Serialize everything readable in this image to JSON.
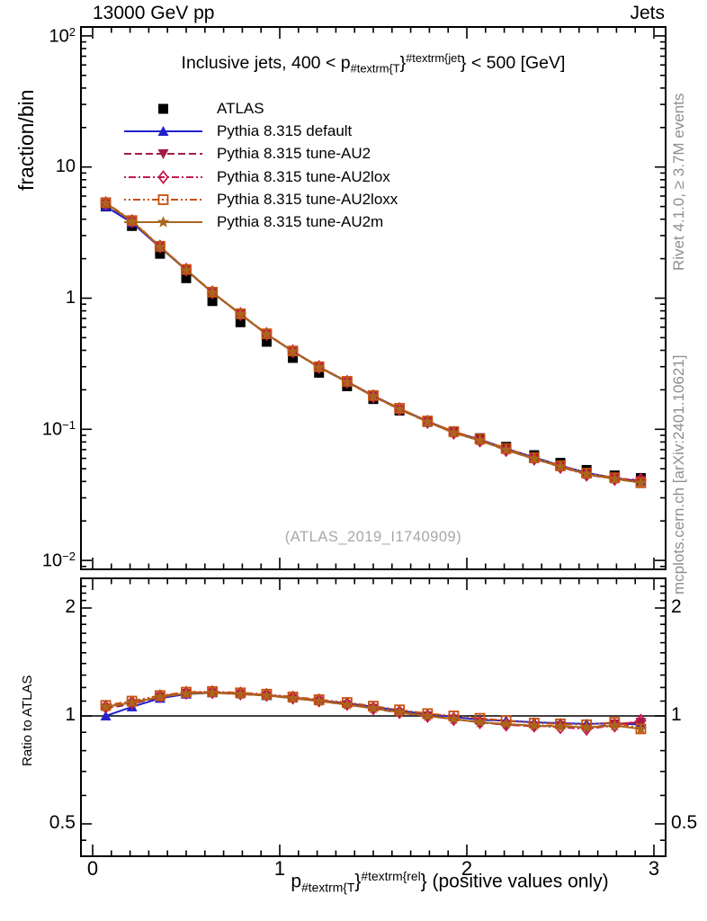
{
  "chart_data": {
    "type": "line",
    "beam_label": "13000 GeV pp",
    "process_label": "Jets",
    "title_parts": [
      {
        "t": "base",
        "s": "Inclusive jets, 400 < p"
      },
      {
        "t": "sub",
        "s": "#textrm{T"
      },
      {
        "t": "base",
        "s": "}"
      },
      {
        "t": "sup",
        "s": "#textrm{jet"
      },
      {
        "t": "base",
        "s": "} < 500 [GeV]"
      }
    ],
    "xlabel_parts": [
      {
        "t": "base",
        "s": "p"
      },
      {
        "t": "sub",
        "s": "#textrm{T"
      },
      {
        "t": "base",
        "s": "}"
      },
      {
        "t": "sup",
        "s": "#textrm{rel"
      },
      {
        "t": "base",
        "s": "} (positive values only)"
      }
    ],
    "ylabel": "fraction/bin",
    "ratio_ylabel": "Ratio to ATLAS",
    "watermark": "(ATLAS_2019_I1740909)",
    "side_notes": {
      "top": "Rivet 4.1.0, ≥ 3.7M events",
      "bottom": "mcplots.cern.ch [arXiv:2401.10621]"
    },
    "x_axis": {
      "min": -0.0625,
      "max": 3.0625,
      "major_ticks": [
        0,
        1,
        2,
        3
      ],
      "tick_labels": [
        "0",
        "1",
        "2",
        "3"
      ],
      "minor_step": 0.1
    },
    "y_axis_main": {
      "scale": "log10",
      "min": 0.00855,
      "max": 117,
      "ticks": [
        {
          "v": 100,
          "base": "10",
          "sup": "2"
        },
        {
          "v": 10,
          "base": "10",
          "sup": ""
        },
        {
          "v": 1,
          "base": "1",
          "sup": ""
        },
        {
          "v": 0.1,
          "base": "10",
          "sup": "−1"
        },
        {
          "v": 0.01,
          "base": "10",
          "sup": "−2"
        }
      ]
    },
    "y_axis_ratio": {
      "scale": "log2",
      "min": 0.406,
      "max": 2.42,
      "ticks": [
        {
          "v": 2,
          "label": "2"
        },
        {
          "v": 1,
          "label": "1"
        },
        {
          "v": 0.5,
          "label": "0.5"
        }
      ],
      "minors": [
        0.45,
        0.6,
        0.7,
        0.8,
        0.9,
        1.1,
        1.2,
        1.3,
        1.4,
        1.5,
        1.6,
        1.7,
        1.8,
        1.9,
        2.1,
        2.2,
        2.3
      ],
      "reference_line": 1
    },
    "x": [
      0.07,
      0.21,
      0.36,
      0.5,
      0.64,
      0.79,
      0.93,
      1.07,
      1.21,
      1.36,
      1.5,
      1.64,
      1.79,
      1.93,
      2.07,
      2.21,
      2.36,
      2.5,
      2.64,
      2.79,
      2.93
    ],
    "series": [
      {
        "name": "ATLAS",
        "kind": "data",
        "color": "#000000",
        "marker": "square-filled",
        "line": "none",
        "values": [
          5.0,
          3.55,
          2.18,
          1.42,
          0.95,
          0.655,
          0.465,
          0.35,
          0.27,
          0.213,
          0.17,
          0.139,
          0.114,
          0.096,
          0.0855,
          0.0735,
          0.0635,
          0.0555,
          0.049,
          0.0445,
          0.0425
        ]
      },
      {
        "name": "Pythia 8.315 default",
        "kind": "mc",
        "color": "#2222cc",
        "marker": "triangle-up",
        "line": "solid",
        "ratio": [
          1.0,
          1.06,
          1.12,
          1.15,
          1.16,
          1.155,
          1.14,
          1.125,
          1.105,
          1.085,
          1.06,
          1.035,
          1.01,
          0.995,
          0.975,
          0.97,
          0.96,
          0.955,
          0.95,
          0.955,
          0.945
        ]
      },
      {
        "name": "Pythia 8.315 tune-AU2",
        "kind": "mc",
        "color": "#a21c44",
        "marker": "triangle-down",
        "line": "dash",
        "ratio": [
          1.05,
          1.08,
          1.13,
          1.155,
          1.16,
          1.15,
          1.14,
          1.12,
          1.1,
          1.075,
          1.05,
          1.02,
          1.0,
          0.98,
          0.96,
          0.945,
          0.935,
          0.94,
          0.925,
          0.95,
          0.96
        ]
      },
      {
        "name": "Pythia 8.315 tune-AU2lox",
        "kind": "mc",
        "color": "#c41a4e",
        "marker": "diamond-open",
        "line": "dashdot",
        "ratio": [
          1.06,
          1.09,
          1.135,
          1.16,
          1.165,
          1.155,
          1.145,
          1.125,
          1.105,
          1.08,
          1.05,
          1.025,
          1.0,
          0.98,
          0.96,
          0.945,
          0.94,
          0.93,
          0.92,
          0.94,
          0.97
        ]
      },
      {
        "name": "Pythia 8.315 tune-AU2loxx",
        "kind": "mc",
        "color": "#c94f0c",
        "marker": "square-open",
        "line": "dashdotdot",
        "ratio": [
          1.07,
          1.1,
          1.14,
          1.165,
          1.17,
          1.16,
          1.15,
          1.13,
          1.11,
          1.09,
          1.065,
          1.04,
          1.015,
          1.0,
          0.985,
          0.97,
          0.955,
          0.95,
          0.945,
          0.96,
          0.92
        ]
      },
      {
        "name": "Pythia 8.315 tune-AU2m",
        "kind": "mc",
        "color": "#a9661c",
        "marker": "star",
        "line": "solid",
        "ratio": [
          1.06,
          1.09,
          1.13,
          1.155,
          1.16,
          1.15,
          1.14,
          1.12,
          1.1,
          1.075,
          1.05,
          1.025,
          1.0,
          0.98,
          0.96,
          0.95,
          0.94,
          0.935,
          0.93,
          0.94,
          0.92
        ]
      }
    ],
    "ratio_err": [
      0.004,
      0.003,
      0.003,
      0.003,
      0.003,
      0.003,
      0.004,
      0.004,
      0.005,
      0.005,
      0.006,
      0.007,
      0.008,
      0.009,
      0.01,
      0.012,
      0.014,
      0.016,
      0.018,
      0.021,
      0.024
    ]
  }
}
